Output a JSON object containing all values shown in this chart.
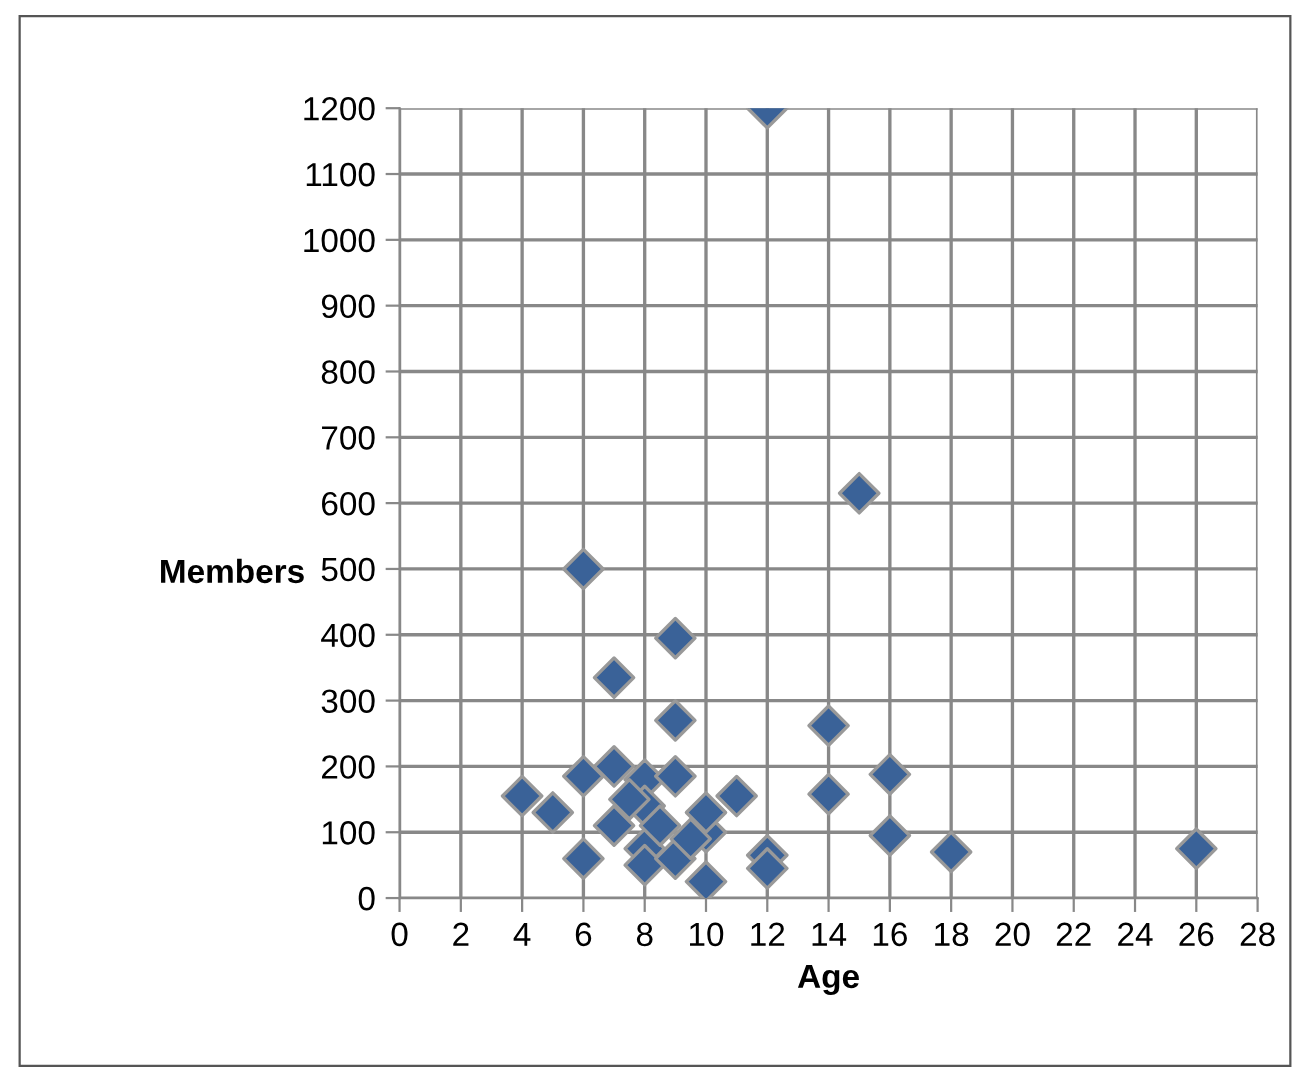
{
  "chart_data": {
    "type": "scatter",
    "xlabel": "Age",
    "ylabel": "Members",
    "x": [
      6,
      12,
      15,
      7,
      9,
      9,
      14,
      4,
      5,
      6,
      6,
      7,
      7,
      8,
      8,
      8,
      8,
      9,
      9,
      10,
      10,
      10,
      11,
      12,
      12,
      14,
      16,
      16,
      18,
      26,
      8.5,
      9.5,
      7.5
    ],
    "series": [
      {
        "color": "#3a6298",
        "values": [
          500,
          1200,
          615,
          335,
          395,
          270,
          262,
          155,
          130,
          185,
          60,
          200,
          110,
          180,
          140,
          75,
          50,
          185,
          60,
          100,
          25,
          130,
          155,
          65,
          45,
          158,
          188,
          95,
          70,
          75,
          110,
          90,
          150
        ]
      }
    ],
    "marker": "diamond",
    "grid": true,
    "xlim": [
      0,
      28
    ],
    "xticks": [
      0,
      2,
      4,
      6,
      8,
      10,
      12,
      14,
      16,
      18,
      20,
      22,
      24,
      26,
      28
    ],
    "ylim": [
      0,
      1200
    ],
    "yticks": [
      0,
      100,
      200,
      300,
      400,
      500,
      600,
      700,
      800,
      900,
      1000,
      1100,
      1200
    ]
  }
}
